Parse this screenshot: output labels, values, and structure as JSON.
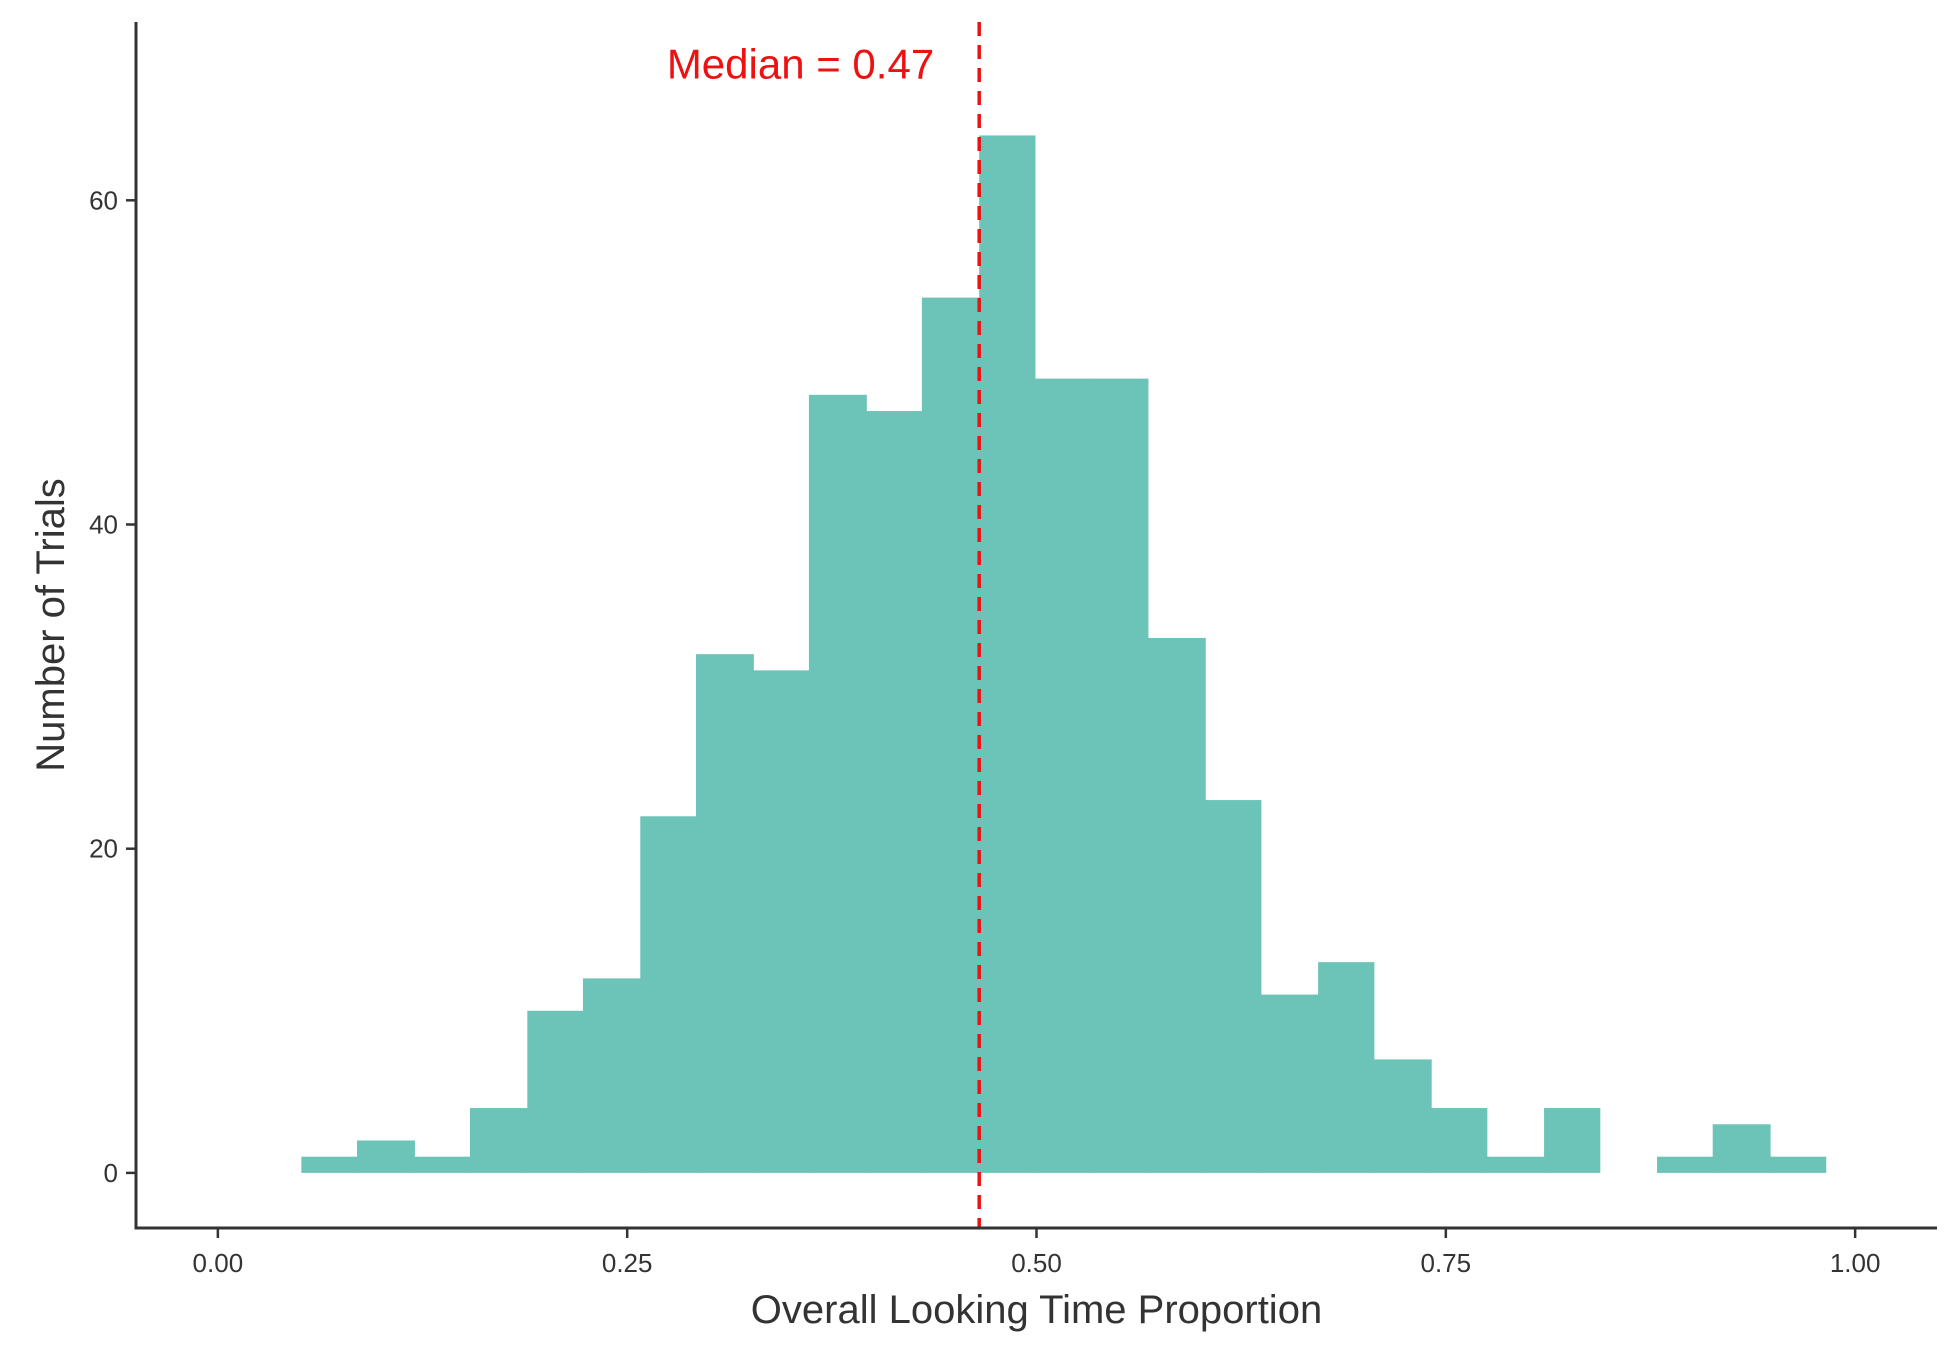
{
  "chart_data": {
    "type": "bar",
    "subtype": "histogram",
    "xlabel": "Overall Looking Time Proportion",
    "ylabel": "Number of Trials",
    "xlim": [
      -0.05,
      1.05
    ],
    "ylim": [
      -3.4,
      71
    ],
    "x_ticks": [
      {
        "value": 0.0,
        "label": "0.00"
      },
      {
        "value": 0.25,
        "label": "0.25"
      },
      {
        "value": 0.5,
        "label": "0.50"
      },
      {
        "value": 0.75,
        "label": "0.75"
      },
      {
        "value": 1.0,
        "label": "1.00"
      }
    ],
    "y_ticks": [
      {
        "value": 0,
        "label": "0"
      },
      {
        "value": 20,
        "label": "20"
      },
      {
        "value": 40,
        "label": "40"
      },
      {
        "value": 60,
        "label": "60"
      }
    ],
    "bin_width": 0.0345,
    "bins": [
      {
        "x0": 0.051,
        "x1": 0.085,
        "count": 1
      },
      {
        "x0": 0.085,
        "x1": 0.12,
        "count": 2
      },
      {
        "x0": 0.12,
        "x1": 0.154,
        "count": 1
      },
      {
        "x0": 0.154,
        "x1": 0.189,
        "count": 4
      },
      {
        "x0": 0.189,
        "x1": 0.223,
        "count": 10
      },
      {
        "x0": 0.223,
        "x1": 0.258,
        "count": 12
      },
      {
        "x0": 0.258,
        "x1": 0.292,
        "count": 22
      },
      {
        "x0": 0.292,
        "x1": 0.327,
        "count": 32
      },
      {
        "x0": 0.327,
        "x1": 0.361,
        "count": 31
      },
      {
        "x0": 0.361,
        "x1": 0.396,
        "count": 48
      },
      {
        "x0": 0.396,
        "x1": 0.43,
        "count": 47
      },
      {
        "x0": 0.43,
        "x1": 0.465,
        "count": 54
      },
      {
        "x0": 0.465,
        "x1": 0.499,
        "count": 64
      },
      {
        "x0": 0.499,
        "x1": 0.534,
        "count": 49
      },
      {
        "x0": 0.534,
        "x1": 0.568,
        "count": 49
      },
      {
        "x0": 0.568,
        "x1": 0.603,
        "count": 33
      },
      {
        "x0": 0.603,
        "x1": 0.637,
        "count": 23
      },
      {
        "x0": 0.637,
        "x1": 0.672,
        "count": 11
      },
      {
        "x0": 0.672,
        "x1": 0.706,
        "count": 13
      },
      {
        "x0": 0.706,
        "x1": 0.741,
        "count": 7
      },
      {
        "x0": 0.741,
        "x1": 0.775,
        "count": 4
      },
      {
        "x0": 0.775,
        "x1": 0.81,
        "count": 1
      },
      {
        "x0": 0.81,
        "x1": 0.844,
        "count": 4
      },
      {
        "x0": 0.844,
        "x1": 0.879,
        "count": 0
      },
      {
        "x0": 0.879,
        "x1": 0.913,
        "count": 1
      },
      {
        "x0": 0.913,
        "x1": 0.948,
        "count": 3
      },
      {
        "x0": 0.948,
        "x1": 0.982,
        "count": 1
      }
    ],
    "median": 0.465,
    "annotation": "Median = 0.47",
    "grid": false,
    "legend": "none",
    "colors": {
      "bar": "#6cc3b7",
      "median_line": "#ee1111",
      "axis": "#333333",
      "text": "#333333"
    }
  }
}
